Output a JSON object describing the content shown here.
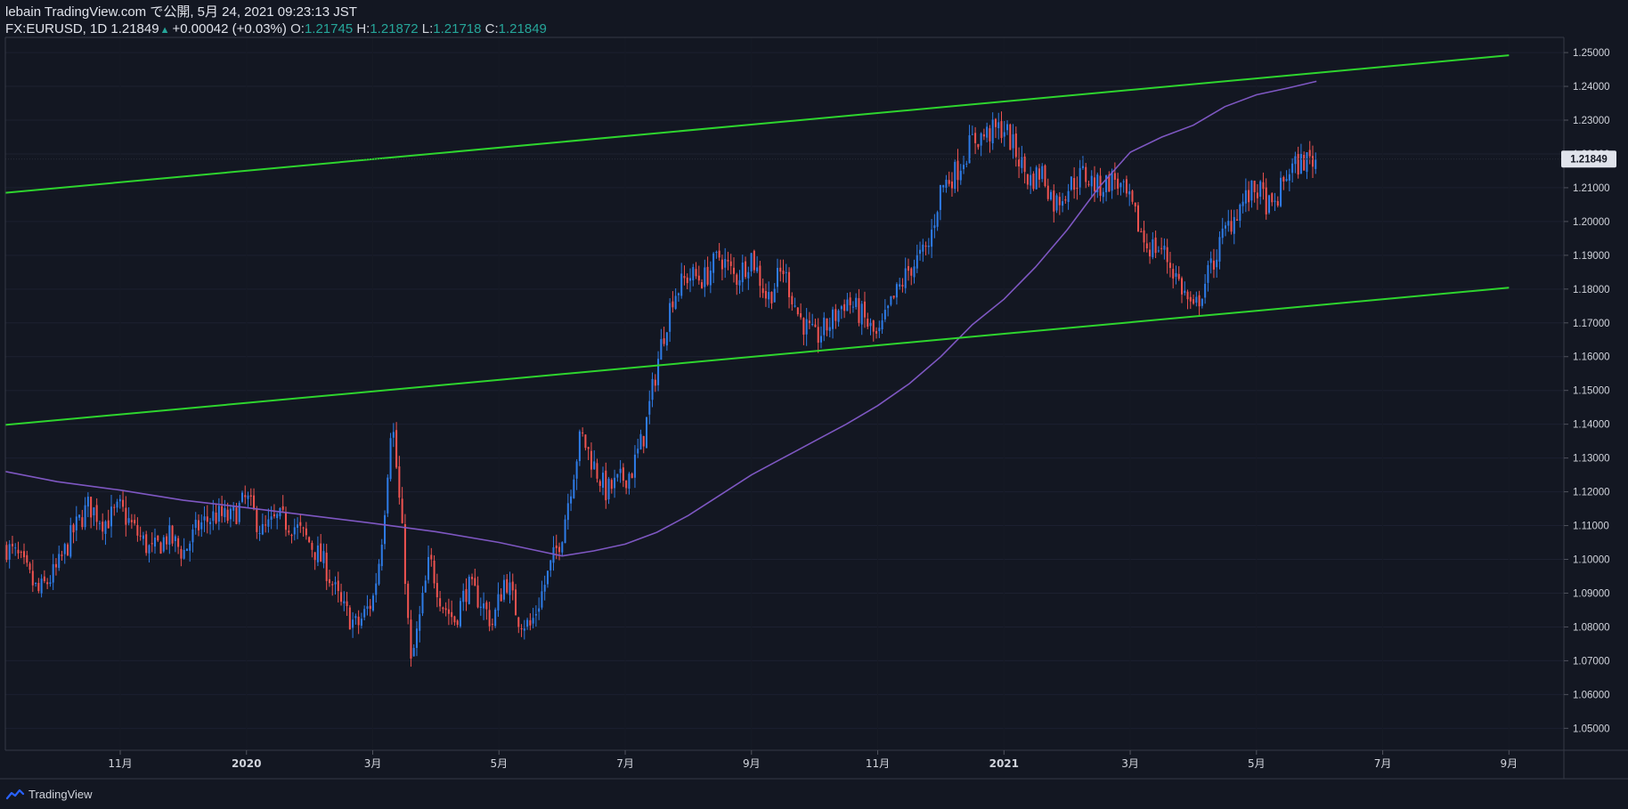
{
  "header": {
    "publish_line": "lebain TradingView.com で公開, 5月 24, 2021 09:23:13 JST",
    "symbol": "FX:EURUSD, 1D",
    "last": "1.21849",
    "change": "+0.00042 (+0.03%)",
    "o_label": "O:",
    "o_value": "1.21745",
    "h_label": "H:",
    "h_value": "1.21872",
    "l_label": "L:",
    "l_value": "1.21718",
    "c_label": "C:",
    "c_value": "1.21849"
  },
  "footer": {
    "brand": "TradingView"
  },
  "colors": {
    "background": "#131722",
    "up": "#2e7be6",
    "down": "#ef5350",
    "ma": "#7e57c2",
    "channel": "#2ed52e",
    "text": "#d1d4dc"
  },
  "chart_data": {
    "type": "candlestick",
    "symbol": "FX:EURUSD",
    "interval": "1D",
    "y_range": [
      1.0435,
      1.2545
    ],
    "y_ticks": [
      "1.05000",
      "1.06000",
      "1.07000",
      "1.08000",
      "1.09000",
      "1.10000",
      "1.11000",
      "1.12000",
      "1.13000",
      "1.14000",
      "1.15000",
      "1.16000",
      "1.17000",
      "1.18000",
      "1.19000",
      "1.20000",
      "1.21000",
      "1.22000",
      "1.23000",
      "1.24000",
      "1.25000"
    ],
    "x_range_months": [
      -3.82,
      20.87
    ],
    "x_axis_note": "months from 2020-01-01 (0 = 2020-01)",
    "x_ticks": [
      {
        "label": "11月",
        "m": -2
      },
      {
        "label": "2020",
        "m": 0
      },
      {
        "label": "3月",
        "m": 2
      },
      {
        "label": "5月",
        "m": 4
      },
      {
        "label": "7月",
        "m": 6
      },
      {
        "label": "9月",
        "m": 8
      },
      {
        "label": "11月",
        "m": 10
      },
      {
        "label": "2021",
        "m": 12
      },
      {
        "label": "3月",
        "m": 14
      },
      {
        "label": "5月",
        "m": 16
      },
      {
        "label": "7月",
        "m": 18
      },
      {
        "label": "9月",
        "m": 20
      }
    ],
    "last_price_label": "1.21849",
    "price_path": [
      [
        -3.82,
        1.104
      ],
      [
        -3.6,
        1.1
      ],
      [
        -3.3,
        1.09
      ],
      [
        -3.0,
        1.097
      ],
      [
        -2.75,
        1.108
      ],
      [
        -2.5,
        1.116
      ],
      [
        -2.25,
        1.111
      ],
      [
        -2.0,
        1.115
      ],
      [
        -1.75,
        1.108
      ],
      [
        -1.5,
        1.102
      ],
      [
        -1.25,
        1.107
      ],
      [
        -1.0,
        1.102
      ],
      [
        -0.75,
        1.11
      ],
      [
        -0.5,
        1.113
      ],
      [
        -0.25,
        1.112
      ],
      [
        0.0,
        1.118
      ],
      [
        0.25,
        1.108
      ],
      [
        0.5,
        1.112
      ],
      [
        0.75,
        1.11
      ],
      [
        1.0,
        1.105
      ],
      [
        1.25,
        1.098
      ],
      [
        1.5,
        1.086
      ],
      [
        1.75,
        1.08
      ],
      [
        2.0,
        1.088
      ],
      [
        2.12,
        1.102
      ],
      [
        2.2,
        1.118
      ],
      [
        2.3,
        1.143
      ],
      [
        2.4,
        1.122
      ],
      [
        2.5,
        1.1
      ],
      [
        2.6,
        1.068
      ],
      [
        2.75,
        1.083
      ],
      [
        2.9,
        1.1
      ],
      [
        3.1,
        1.087
      ],
      [
        3.3,
        1.082
      ],
      [
        3.5,
        1.092
      ],
      [
        3.7,
        1.088
      ],
      [
        3.9,
        1.081
      ],
      [
        4.1,
        1.095
      ],
      [
        4.3,
        1.083
      ],
      [
        4.5,
        1.08
      ],
      [
        4.75,
        1.094
      ],
      [
        5.0,
        1.108
      ],
      [
        5.15,
        1.123
      ],
      [
        5.3,
        1.137
      ],
      [
        5.5,
        1.128
      ],
      [
        5.7,
        1.12
      ],
      [
        5.9,
        1.123
      ],
      [
        6.1,
        1.126
      ],
      [
        6.3,
        1.137
      ],
      [
        6.55,
        1.162
      ],
      [
        6.75,
        1.178
      ],
      [
        7.0,
        1.184
      ],
      [
        7.25,
        1.183
      ],
      [
        7.5,
        1.19
      ],
      [
        7.75,
        1.183
      ],
      [
        8.0,
        1.19
      ],
      [
        8.25,
        1.177
      ],
      [
        8.5,
        1.186
      ],
      [
        8.75,
        1.172
      ],
      [
        9.0,
        1.165
      ],
      [
        9.25,
        1.17
      ],
      [
        9.5,
        1.177
      ],
      [
        9.75,
        1.172
      ],
      [
        10.0,
        1.165
      ],
      [
        10.2,
        1.175
      ],
      [
        10.5,
        1.186
      ],
      [
        10.8,
        1.192
      ],
      [
        11.0,
        1.21
      ],
      [
        11.25,
        1.215
      ],
      [
        11.5,
        1.224
      ],
      [
        11.75,
        1.226
      ],
      [
        12.0,
        1.228
      ],
      [
        12.2,
        1.22
      ],
      [
        12.4,
        1.212
      ],
      [
        12.6,
        1.215
      ],
      [
        12.8,
        1.205
      ],
      [
        13.0,
        1.21
      ],
      [
        13.25,
        1.214
      ],
      [
        13.5,
        1.21
      ],
      [
        13.75,
        1.213
      ],
      [
        14.0,
        1.205
      ],
      [
        14.25,
        1.193
      ],
      [
        14.5,
        1.192
      ],
      [
        14.75,
        1.183
      ],
      [
        15.0,
        1.173
      ],
      [
        15.25,
        1.185
      ],
      [
        15.5,
        1.197
      ],
      [
        15.75,
        1.205
      ],
      [
        16.0,
        1.21
      ],
      [
        16.25,
        1.203
      ],
      [
        16.5,
        1.215
      ],
      [
        16.75,
        1.218
      ],
      [
        16.95,
        1.2185
      ]
    ],
    "ma_path": [
      [
        -3.82,
        1.126
      ],
      [
        -3.0,
        1.123
      ],
      [
        -2.0,
        1.1205
      ],
      [
        -1.0,
        1.1175
      ],
      [
        0.0,
        1.1153
      ],
      [
        1.0,
        1.113
      ],
      [
        2.0,
        1.1107
      ],
      [
        3.0,
        1.1082
      ],
      [
        4.0,
        1.105
      ],
      [
        4.5,
        1.103
      ],
      [
        5.0,
        1.101
      ],
      [
        5.5,
        1.1025
      ],
      [
        6.0,
        1.1045
      ],
      [
        6.5,
        1.108
      ],
      [
        7.0,
        1.113
      ],
      [
        7.5,
        1.119
      ],
      [
        8.0,
        1.125
      ],
      [
        8.5,
        1.13
      ],
      [
        9.0,
        1.135
      ],
      [
        9.5,
        1.14
      ],
      [
        10.0,
        1.1455
      ],
      [
        10.5,
        1.152
      ],
      [
        11.0,
        1.16
      ],
      [
        11.5,
        1.1695
      ],
      [
        12.0,
        1.177
      ],
      [
        12.5,
        1.1865
      ],
      [
        13.0,
        1.1975
      ],
      [
        13.5,
        1.21
      ],
      [
        14.0,
        1.2205
      ],
      [
        14.5,
        1.225
      ],
      [
        15.0,
        1.2285
      ],
      [
        15.5,
        1.234
      ],
      [
        16.0,
        1.2375
      ],
      [
        16.5,
        1.2395
      ],
      [
        16.95,
        1.2415
      ]
    ],
    "channel_lines": [
      {
        "name": "upper-trendline",
        "points": [
          [
            -3.82,
            1.2085
          ],
          [
            20.0,
            1.2492
          ]
        ]
      },
      {
        "name": "lower-trendline",
        "points": [
          [
            -3.82,
            1.1398
          ],
          [
            20.0,
            1.1804
          ]
        ]
      }
    ]
  }
}
